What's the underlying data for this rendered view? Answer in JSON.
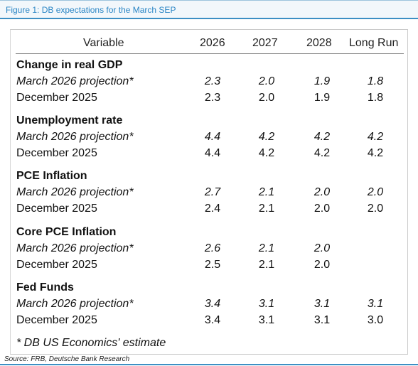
{
  "figure": {
    "title": "Figure 1: DB expectations for the March SEP",
    "source": "Source: FRB, Deutsche Bank Research",
    "footnote": "* DB US Economics' estimate"
  },
  "table": {
    "columns": [
      "Variable",
      "2026",
      "2027",
      "2028",
      "Long Run"
    ],
    "sections": [
      {
        "title": "Change in real GDP",
        "rows": [
          {
            "label": "March 2026 projection*",
            "values": [
              "2.3",
              "2.0",
              "1.9",
              "1.8"
            ]
          },
          {
            "label": "December 2025",
            "values": [
              "2.3",
              "2.0",
              "1.9",
              "1.8"
            ]
          }
        ]
      },
      {
        "title": "Unemployment rate",
        "rows": [
          {
            "label": "March 2026 projection*",
            "values": [
              "4.4",
              "4.2",
              "4.2",
              "4.2"
            ]
          },
          {
            "label": "December 2025",
            "values": [
              "4.4",
              "4.2",
              "4.2",
              "4.2"
            ]
          }
        ]
      },
      {
        "title": "PCE Inflation",
        "rows": [
          {
            "label": "March 2026 projection*",
            "values": [
              "2.7",
              "2.1",
              "2.0",
              "2.0"
            ]
          },
          {
            "label": "December 2025",
            "values": [
              "2.4",
              "2.1",
              "2.0",
              "2.0"
            ]
          }
        ]
      },
      {
        "title": "Core PCE Inflation",
        "rows": [
          {
            "label": "March 2026 projection*",
            "values": [
              "2.6",
              "2.1",
              "2.0",
              ""
            ]
          },
          {
            "label": "December 2025",
            "values": [
              "2.5",
              "2.1",
              "2.0",
              ""
            ]
          }
        ]
      },
      {
        "title": "Fed Funds",
        "rows": [
          {
            "label": "March 2026 projection*",
            "values": [
              "3.4",
              "3.1",
              "3.1",
              "3.1"
            ]
          },
          {
            "label": "December 2025",
            "values": [
              "3.4",
              "3.1",
              "3.1",
              "3.0"
            ]
          }
        ]
      }
    ]
  },
  "colors": {
    "accent": "#3d8fc4",
    "title_text": "#2b86c5"
  }
}
